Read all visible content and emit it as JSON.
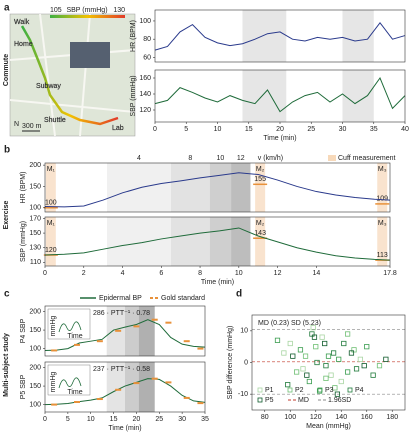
{
  "panel_letters": [
    "a",
    "b",
    "c",
    "d"
  ],
  "row_labels": [
    "Commute",
    "Exercise",
    "Multi-subject study"
  ],
  "map": {
    "labels": [
      "Walk",
      "Home",
      "Subway",
      "Shuttle",
      "Lab"
    ],
    "scale": "300 m",
    "north": "N",
    "colorbar": {
      "label": "SBP (mmHg)",
      "ticks": [
        105,
        130
      ],
      "colors": [
        "#3cb043",
        "#f2c200",
        "#e23a2a"
      ]
    }
  },
  "legend_c": {
    "names": [
      "Epidermal BP",
      "Gold standard"
    ],
    "colors": [
      "#1f6b3a",
      "#e8913a"
    ]
  },
  "chart_data": [
    {
      "type": "line",
      "ylabel": "HR (BPM)",
      "xlim": [
        0,
        40
      ],
      "ylim": [
        55,
        112
      ],
      "yticks": [
        60,
        80,
        100
      ],
      "bands": [
        [
          14,
          21
        ],
        [
          30,
          35
        ]
      ],
      "band_colors": [
        "#e6e6e6",
        "#e6e6e6"
      ],
      "series": [
        {
          "color": "#2a3a8c",
          "x": [
            0,
            2,
            4,
            6,
            8,
            10,
            12,
            14,
            16,
            18,
            20,
            22,
            24,
            26,
            28,
            30,
            32,
            34,
            36,
            38,
            40
          ],
          "values": [
            68,
            72,
            88,
            96,
            82,
            76,
            73,
            75,
            80,
            86,
            88,
            80,
            78,
            82,
            80,
            82,
            78,
            80,
            98,
            80,
            84
          ]
        }
      ]
    },
    {
      "type": "line",
      "ylabel": "SBP (mmHg)",
      "xlabel": "Time (min)",
      "xlim": [
        0,
        40
      ],
      "ylim": [
        105,
        170
      ],
      "yticks": [
        120,
        140,
        160
      ],
      "xticks": [
        0,
        5,
        10,
        15,
        20,
        25,
        30,
        35,
        40
      ],
      "bands": [
        [
          14,
          21
        ],
        [
          30,
          35
        ]
      ],
      "band_colors": [
        "#e6e6e6",
        "#e6e6e6"
      ],
      "series": [
        {
          "color": "#1f6b3a",
          "x": [
            0,
            2,
            4,
            6,
            8,
            10,
            12,
            14,
            16,
            18,
            20,
            22,
            24,
            26,
            28,
            30,
            32,
            34,
            36,
            38,
            40
          ],
          "values": [
            128,
            132,
            148,
            142,
            135,
            130,
            138,
            132,
            128,
            145,
            118,
            130,
            138,
            142,
            130,
            140,
            128,
            138,
            160,
            122,
            138
          ]
        }
      ]
    },
    {
      "type": "line",
      "ylabel": "HR (BPM)",
      "xlim": [
        0,
        17.8
      ],
      "ylim": [
        90,
        205
      ],
      "yticks": [
        100,
        150,
        200
      ],
      "top_axis_label": "v (km/h)",
      "cuff_legend": "Cuff measurement",
      "bands": [
        [
          3.2,
          6.5
        ],
        [
          6.5,
          8.5
        ],
        [
          8.5,
          9.6
        ],
        [
          9.6,
          10.6
        ]
      ],
      "band_colors": [
        "#f0f0f0",
        "#e2e2e2",
        "#cfcfcf",
        "#bdbdbd"
      ],
      "speeds": [
        4,
        8,
        10,
        12
      ],
      "cuff": {
        "color": "#e8913a",
        "x": [
          0.3,
          11.1,
          17.4
        ],
        "labels": [
          "M₁",
          "M₂",
          "M₃"
        ],
        "values": [
          100,
          155,
          109
        ]
      },
      "series": [
        {
          "color": "#2a3a8c",
          "x": [
            0,
            1,
            2,
            3,
            4,
            5,
            6,
            7,
            8,
            9,
            10,
            11,
            12,
            13,
            14,
            15,
            16,
            17,
            17.8
          ],
          "values": [
            103,
            102,
            104,
            118,
            135,
            148,
            157,
            163,
            170,
            176,
            182,
            178,
            165,
            150,
            138,
            130,
            124,
            120,
            118
          ]
        }
      ]
    },
    {
      "type": "line",
      "ylabel": "SBP (mmHg)",
      "xlabel": "Time (min)",
      "xlim": [
        0,
        17.8
      ],
      "ylim": [
        105,
        172
      ],
      "yticks": [
        110,
        130,
        150,
        170
      ],
      "xticks": [
        0,
        2,
        4,
        6,
        8,
        10,
        12,
        14,
        17.8
      ],
      "bands": [
        [
          3.2,
          6.5
        ],
        [
          6.5,
          8.5
        ],
        [
          8.5,
          9.6
        ],
        [
          9.6,
          10.6
        ]
      ],
      "band_colors": [
        "#f0f0f0",
        "#e2e2e2",
        "#cfcfcf",
        "#bdbdbd"
      ],
      "cuff": {
        "color": "#e8913a",
        "x": [
          0.3,
          11.1,
          17.4
        ],
        "labels": [
          "M₁",
          "M₂",
          "M₃"
        ],
        "values": [
          120,
          143,
          113
        ]
      },
      "series": [
        {
          "color": "#1f6b3a",
          "x": [
            0,
            1,
            2,
            3,
            4,
            5,
            6,
            7,
            8,
            9,
            10,
            11,
            12,
            13,
            14,
            15,
            16,
            17,
            17.8
          ],
          "values": [
            120,
            121,
            123,
            128,
            133,
            137,
            142,
            146,
            150,
            153,
            157,
            146,
            138,
            130,
            124,
            119,
            116,
            114,
            113
          ]
        }
      ]
    },
    {
      "type": "line",
      "ylabel": "P4 SBP",
      "xlim": [
        0,
        35
      ],
      "ylim": [
        80,
        215
      ],
      "yticks": [
        100,
        150,
        200
      ],
      "annotation": "286 · PTT⁻¹ · 0.78",
      "inset_ylabel": "mmHg",
      "inset_xlabel": "Time",
      "bands": [
        [
          13.5,
          17.5
        ],
        [
          17.5,
          20.5
        ],
        [
          20.5,
          24
        ]
      ],
      "band_colors": [
        "#e4e4e4",
        "#cccccc",
        "#b0b0b0"
      ],
      "series": [
        {
          "name": "Epidermal BP",
          "color": "#1f6b3a",
          "x": [
            0,
            2.5,
            5,
            7.5,
            10,
            12.5,
            15,
            17.5,
            20,
            22.5,
            25,
            27.5,
            30,
            32.5,
            35
          ],
          "values": [
            95,
            96,
            100,
            115,
            120,
            125,
            150,
            158,
            165,
            178,
            165,
            130,
            112,
            106,
            104
          ]
        },
        {
          "name": "Gold standard",
          "style": "dash",
          "color": "#e8913a",
          "x": [
            2,
            7,
            12,
            16,
            20,
            24,
            27,
            31,
            34
          ],
          "values": [
            95,
            110,
            120,
            148,
            160,
            178,
            170,
            120,
            100
          ]
        }
      ]
    },
    {
      "type": "line",
      "ylabel": "P5 SBP",
      "xlabel": "Time (min)",
      "xlim": [
        0,
        35
      ],
      "ylim": [
        80,
        215
      ],
      "yticks": [
        100,
        150,
        200
      ],
      "xticks": [
        0,
        5,
        10,
        15,
        20,
        25,
        30,
        35
      ],
      "annotation": "237 · PTT⁻¹ · 0.58",
      "inset_ylabel": "mmHg",
      "inset_xlabel": "Time",
      "bands": [
        [
          13.5,
          17.5
        ],
        [
          17.5,
          20.5
        ],
        [
          20.5,
          24
        ]
      ],
      "band_colors": [
        "#e4e4e4",
        "#cccccc",
        "#b0b0b0"
      ],
      "series": [
        {
          "name": "Epidermal BP",
          "color": "#1f6b3a",
          "x": [
            0,
            2.5,
            5,
            7.5,
            10,
            12.5,
            15,
            17.5,
            20,
            22.5,
            25,
            27.5,
            30,
            32.5,
            35
          ],
          "values": [
            100,
            101,
            103,
            108,
            112,
            118,
            135,
            150,
            160,
            170,
            168,
            150,
            125,
            110,
            106
          ]
        },
        {
          "name": "Gold standard",
          "style": "dash",
          "color": "#e8913a",
          "x": [
            2,
            7,
            12,
            16,
            20,
            24,
            27,
            31,
            34
          ],
          "values": [
            100,
            107,
            115,
            140,
            158,
            170,
            160,
            118,
            104
          ]
        }
      ]
    },
    {
      "type": "scatter",
      "ylabel": "SBP difference (mmHg)",
      "xlabel": "Mean (mmHg)",
      "annotation": "MD (0.23)   SD (5.23)",
      "xlim": [
        70,
        190
      ],
      "ylim": [
        -15,
        15
      ],
      "xticks": [
        80,
        100,
        120,
        140,
        160,
        180
      ],
      "yticks": [
        -10,
        0,
        10
      ],
      "md": {
        "name": "MD",
        "value": 0.23
      },
      "sd": {
        "name": "1.96SD",
        "values": [
          10.48,
          -10.02
        ]
      },
      "series": [
        {
          "name": "P1",
          "color": "#a8d5a2",
          "x": [
            95,
            110,
            125,
            140,
            155,
            118,
            132,
            100
          ],
          "values": [
            3,
            -2,
            8,
            -6,
            1,
            11,
            -4,
            6
          ]
        },
        {
          "name": "P2",
          "color": "#6fbf73",
          "x": [
            105,
            120,
            135,
            150,
            170,
            112,
            145,
            128
          ],
          "values": [
            -3,
            5,
            -8,
            4,
            -1,
            2,
            9,
            -5
          ]
        },
        {
          "name": "P3",
          "color": "#3a9d4f",
          "x": [
            90,
            115,
            130,
            145,
            160,
            123,
            138,
            108
          ],
          "values": [
            7,
            -6,
            2,
            -3,
            5,
            -9,
            1,
            4
          ]
        },
        {
          "name": "P4",
          "color": "#1f7a3a",
          "x": [
            98,
            117,
            128,
            142,
            165,
            134,
            152,
            121
          ],
          "values": [
            -7,
            9,
            -1,
            6,
            -4,
            3,
            -2,
            0
          ]
        },
        {
          "name": "P5",
          "color": "#0e5a2a",
          "x": [
            102,
            113,
            127,
            137,
            148,
            158,
            175,
            119
          ],
          "values": [
            2,
            -4,
            6,
            -10,
            3,
            -1,
            1,
            8
          ]
        }
      ]
    }
  ]
}
